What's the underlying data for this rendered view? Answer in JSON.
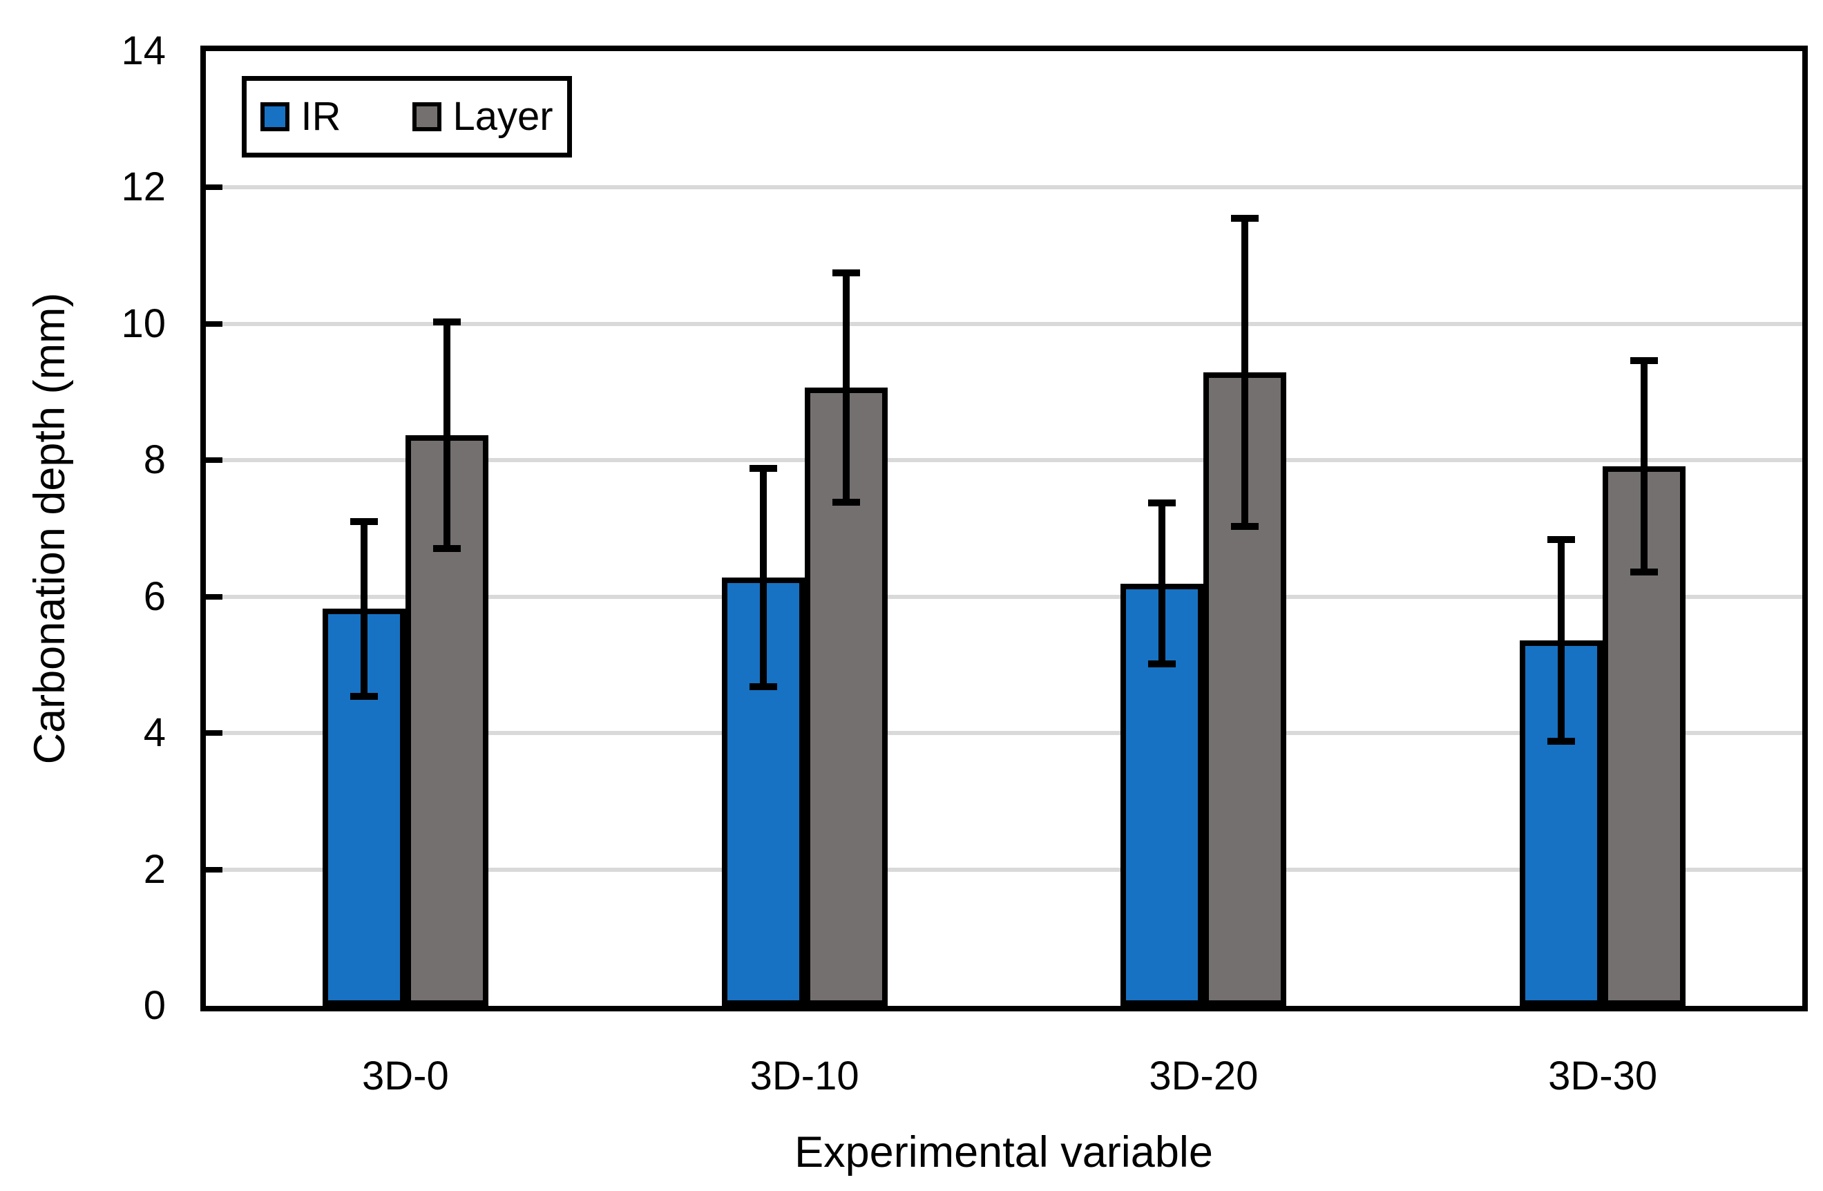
{
  "chart_data": {
    "type": "bar",
    "xlabel": "Experimental variable",
    "ylabel": "Carbonation depth (mm)",
    "categories": [
      "3D-0",
      "3D-10",
      "3D-20",
      "3D-30"
    ],
    "series": [
      {
        "name": "IR",
        "color": "#1772C3",
        "values": [
          5.82,
          6.28,
          6.19,
          5.36
        ],
        "errors": [
          1.28,
          1.6,
          1.18,
          1.48
        ]
      },
      {
        "name": "Layer",
        "color": "#757070",
        "values": [
          8.37,
          9.07,
          9.29,
          7.91
        ],
        "errors": [
          1.66,
          1.68,
          2.26,
          1.55
        ]
      }
    ],
    "ylim": [
      0,
      14
    ],
    "yticks": [
      0,
      2,
      4,
      6,
      8,
      10,
      12,
      14
    ],
    "ytick_step": 2,
    "grid": "horizontal",
    "gridline_color": "#D9D9D9",
    "axis_color": "#000000",
    "error_bar_color": "#000000",
    "legend_position": "top-left-inside",
    "legend_entries": [
      "IR",
      "Layer"
    ]
  }
}
